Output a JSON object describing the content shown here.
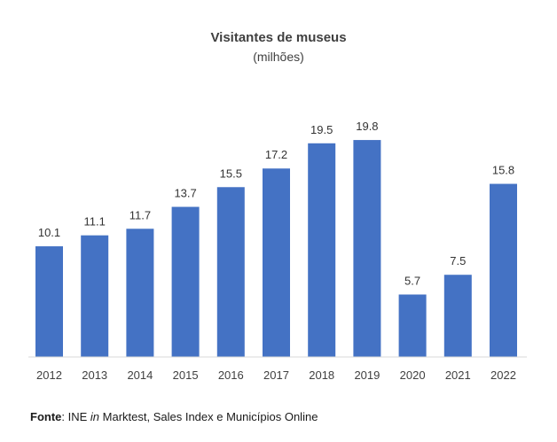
{
  "chart_data": {
    "type": "bar",
    "title": "Visitantes de museus",
    "subtitle": "(milhões)",
    "categories": [
      "2012",
      "2013",
      "2014",
      "2015",
      "2016",
      "2017",
      "2018",
      "2019",
      "2020",
      "2021",
      "2022"
    ],
    "values": [
      10.1,
      11.1,
      11.7,
      13.7,
      15.5,
      17.2,
      19.5,
      19.8,
      5.7,
      7.5,
      15.8
    ],
    "value_labels": [
      "10.1",
      "11.1",
      "11.7",
      "13.7",
      "15.5",
      "17.2",
      "19.5",
      "19.8",
      "5.7",
      "7.5",
      "15.8"
    ],
    "ylim": [
      0,
      22
    ],
    "grid": false,
    "legend": "none",
    "bar_color": "#4472C4"
  },
  "source": {
    "label": "Fonte",
    "prefix": ": INE ",
    "italic": "in",
    "suffix": " Marktest, Sales Index e Municípios Online"
  }
}
